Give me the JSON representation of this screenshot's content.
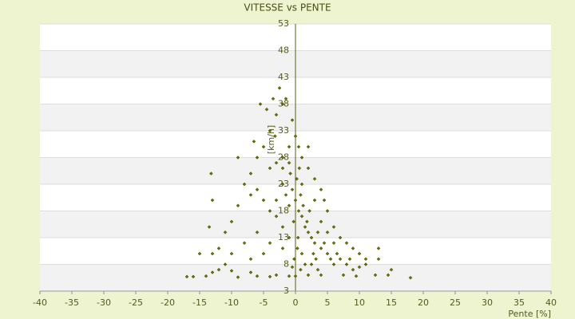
{
  "chart_data": {
    "type": "scatter",
    "title": "VITESSE vs PENTE",
    "x_label": "Pente [%]",
    "y_label": "[km/h]",
    "color": "#6f7200",
    "xlim": [
      -40,
      40
    ],
    "xticks": [
      -40,
      -35,
      -30,
      -25,
      -20,
      -15,
      -10,
      -5,
      0,
      5,
      10,
      15,
      20,
      25,
      30,
      35,
      40
    ],
    "ylim": [
      3,
      53
    ],
    "yticks": [
      3,
      8,
      13,
      18,
      23,
      28,
      33,
      38,
      43,
      48,
      53
    ],
    "grid": true,
    "x": [
      0,
      0.5,
      1,
      -0.5,
      0.2,
      1.5,
      2,
      -1,
      0.8,
      1.2,
      -0.3,
      0.4,
      2.5,
      3,
      1.8,
      -1.5,
      -2,
      0.6,
      -0.8,
      1,
      2.2,
      3.5,
      4,
      4.5,
      5,
      2.8,
      0.3,
      -0.2,
      1.5,
      3.2,
      5.5,
      6,
      6.5,
      7,
      8,
      9,
      10,
      11,
      13,
      12.5,
      15,
      18,
      14.5,
      7.5,
      9.5,
      4,
      2,
      0,
      -1,
      -3,
      -4,
      -6,
      -7,
      -9,
      -10,
      -12,
      -14,
      -16,
      -17,
      -13,
      -2,
      -3,
      -4,
      -5,
      -6,
      -7,
      -8,
      -9,
      -10,
      -11,
      -12,
      -13,
      -13.5,
      -13,
      -13.2,
      -7,
      -9,
      -6,
      -5,
      -4,
      -3,
      -2,
      -4.5,
      -5.5,
      -3.5,
      -2.5,
      -1.5,
      -0.5,
      0,
      -1,
      -2,
      -3,
      -4,
      -6,
      -8,
      -5,
      -7,
      -10,
      -11,
      -15,
      -4,
      -2,
      -1,
      -3,
      -2,
      -1,
      -3.2,
      -6.5,
      1,
      2,
      3,
      4,
      4.5,
      5,
      3,
      6,
      7,
      8,
      9,
      10,
      11,
      13,
      8.5,
      5,
      2,
      0.5,
      4,
      6,
      1,
      2.5,
      0.8,
      -0.5,
      3.5
    ],
    "y": [
      20,
      18,
      17,
      22,
      24,
      15,
      14,
      19,
      21,
      19,
      16,
      13,
      13,
      12,
      16,
      21,
      23,
      26,
      25,
      23,
      18,
      14,
      11,
      12,
      10,
      10,
      11,
      9,
      8,
      9,
      9,
      8,
      10,
      9,
      8,
      7,
      7.5,
      8,
      9,
      6,
      7,
      5.5,
      6,
      6,
      5.8,
      6,
      6,
      5.8,
      5.8,
      6,
      5.7,
      5.8,
      6.5,
      5.6,
      6.8,
      7,
      5.8,
      5.7,
      5.7,
      6.5,
      15,
      17,
      18,
      20,
      22,
      21,
      23,
      19,
      16,
      14,
      11,
      10,
      15,
      20,
      25,
      25,
      28,
      28,
      30,
      33,
      36,
      38,
      37,
      38,
      39,
      41,
      39,
      35,
      32,
      30,
      28,
      27,
      26,
      14,
      12,
      10,
      9,
      10,
      8,
      10,
      12,
      11,
      13,
      20,
      26,
      27,
      32,
      31,
      28,
      26,
      24,
      22,
      20,
      18,
      20,
      15,
      13,
      12,
      11,
      10,
      9,
      11,
      9,
      14,
      30,
      30,
      16,
      12,
      10,
      8,
      7,
      7.5,
      7
    ]
  }
}
